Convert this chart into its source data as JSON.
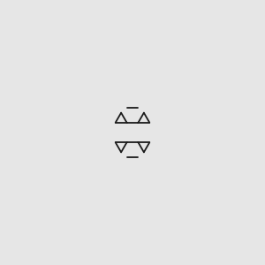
{
  "background_color": "#e6e6e6",
  "line_color": "#1a1a1a",
  "line_width": 1.3,
  "figure_size": [
    3.0,
    3.0
  ],
  "dpi": 100
}
